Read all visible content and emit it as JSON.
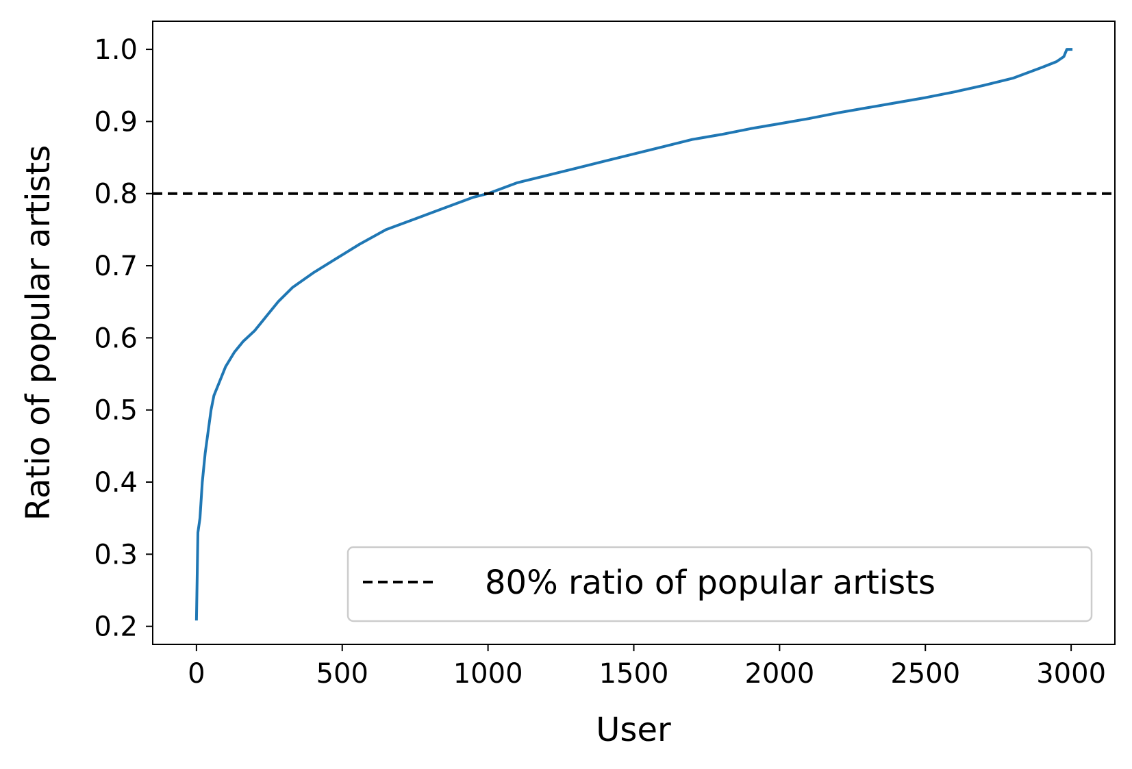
{
  "chart_data": {
    "type": "line",
    "title": "",
    "xlabel": "User",
    "ylabel": "Ratio of popular artists",
    "xlim": [
      -150,
      3150
    ],
    "ylim": [
      0.175,
      1.039
    ],
    "xticks": [
      0,
      500,
      1000,
      1500,
      2000,
      2500,
      3000
    ],
    "xtick_labels": [
      "0",
      "500",
      "1000",
      "1500",
      "2000",
      "2500",
      "3000"
    ],
    "yticks": [
      0.2,
      0.3,
      0.4,
      0.5,
      0.6,
      0.7,
      0.8,
      0.9,
      1.0
    ],
    "ytick_labels": [
      "0.2",
      "0.3",
      "0.4",
      "0.5",
      "0.6",
      "0.7",
      "0.8",
      "0.9",
      "1.0"
    ],
    "grid": false,
    "legend_position": "lower-right",
    "series": [
      {
        "kind": "line",
        "color": "#1f77b4",
        "points": [
          [
            0,
            0.21
          ],
          [
            5,
            0.33
          ],
          [
            12,
            0.35
          ],
          [
            20,
            0.4
          ],
          [
            30,
            0.44
          ],
          [
            40,
            0.47
          ],
          [
            50,
            0.5
          ],
          [
            60,
            0.52
          ],
          [
            80,
            0.54
          ],
          [
            100,
            0.56
          ],
          [
            130,
            0.58
          ],
          [
            160,
            0.595
          ],
          [
            200,
            0.61
          ],
          [
            240,
            0.63
          ],
          [
            280,
            0.65
          ],
          [
            330,
            0.67
          ],
          [
            400,
            0.69
          ],
          [
            480,
            0.71
          ],
          [
            560,
            0.73
          ],
          [
            650,
            0.75
          ],
          [
            750,
            0.765
          ],
          [
            850,
            0.78
          ],
          [
            950,
            0.795
          ],
          [
            1000,
            0.8
          ],
          [
            1100,
            0.815
          ],
          [
            1200,
            0.825
          ],
          [
            1300,
            0.835
          ],
          [
            1400,
            0.845
          ],
          [
            1500,
            0.855
          ],
          [
            1600,
            0.865
          ],
          [
            1700,
            0.875
          ],
          [
            1800,
            0.882
          ],
          [
            1900,
            0.89
          ],
          [
            2000,
            0.897
          ],
          [
            2100,
            0.904
          ],
          [
            2200,
            0.912
          ],
          [
            2300,
            0.919
          ],
          [
            2400,
            0.926
          ],
          [
            2500,
            0.933
          ],
          [
            2600,
            0.941
          ],
          [
            2700,
            0.95
          ],
          [
            2800,
            0.96
          ],
          [
            2900,
            0.975
          ],
          [
            2950,
            0.983
          ],
          [
            2975,
            0.99
          ],
          [
            2985,
            1.0
          ],
          [
            3000,
            1.0
          ]
        ]
      },
      {
        "kind": "hline",
        "name": "80% ratio of popular artists",
        "y": 0.8,
        "color": "#000000",
        "style": "dashed"
      }
    ]
  }
}
